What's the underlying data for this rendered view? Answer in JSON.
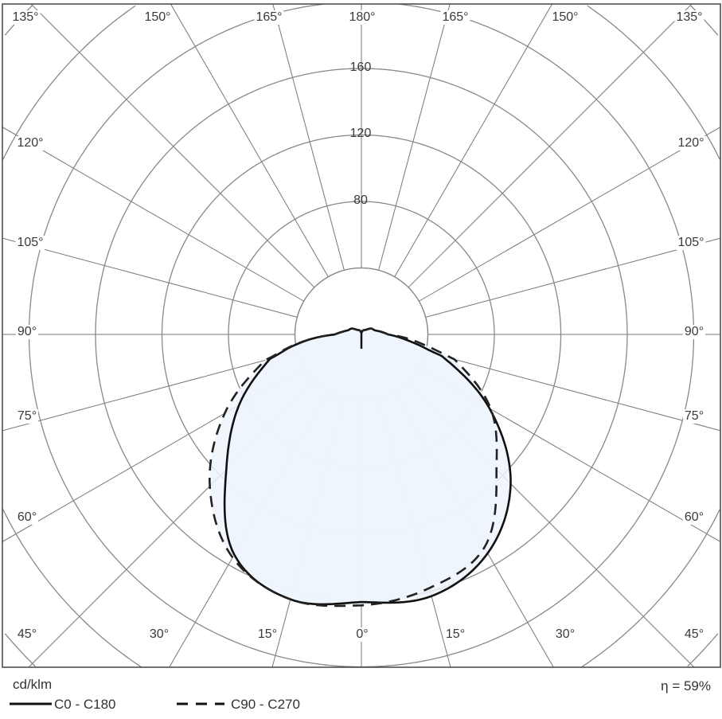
{
  "chart_data": {
    "type": "polar",
    "unit_label": "cd/klm",
    "efficiency_label": "η = 59%",
    "radial_ticks": [
      80,
      120,
      160
    ],
    "radial_rings": [
      40,
      80,
      120,
      160,
      200,
      240,
      280
    ],
    "angle_step": 15,
    "angle_labels": {
      "top": [
        "135°",
        "150°",
        "165°",
        "180°",
        "165°",
        "150°",
        "135°"
      ],
      "left": [
        "120°",
        "105°",
        "90°",
        "75°",
        "60°",
        "45°"
      ],
      "right": [
        "120°",
        "105°",
        "90°",
        "75°",
        "60°",
        "45°"
      ],
      "bottom": [
        "30°",
        "15°",
        "0°",
        "15°",
        "30°"
      ]
    },
    "angles": [
      0,
      15,
      30,
      45,
      60,
      75,
      80,
      85,
      90,
      105,
      120,
      135,
      150,
      165,
      180
    ],
    "series": [
      {
        "name": "C0 - C180",
        "style": "solid",
        "color": "#111111",
        "right": [
          161,
          163,
          152,
          127,
          89,
          50,
          34,
          24,
          16,
          9,
          7,
          4,
          3,
          2,
          1
        ],
        "left": [
          161,
          165,
          153,
          115,
          85,
          57,
          43,
          30,
          16,
          9,
          7,
          4,
          3,
          2,
          1
        ]
      },
      {
        "name": "C90 - C270",
        "style": "dashed",
        "color": "#222222",
        "right": [
          163,
          158,
          148,
          115,
          90,
          58,
          40,
          28,
          16,
          9,
          7,
          4,
          3,
          2,
          1
        ],
        "left": [
          163,
          165,
          155,
          129,
          95,
          60,
          44,
          30,
          16,
          9,
          7,
          4,
          3,
          2,
          1
        ]
      }
    ],
    "fill_color": "#eef4fb",
    "grid": true
  }
}
